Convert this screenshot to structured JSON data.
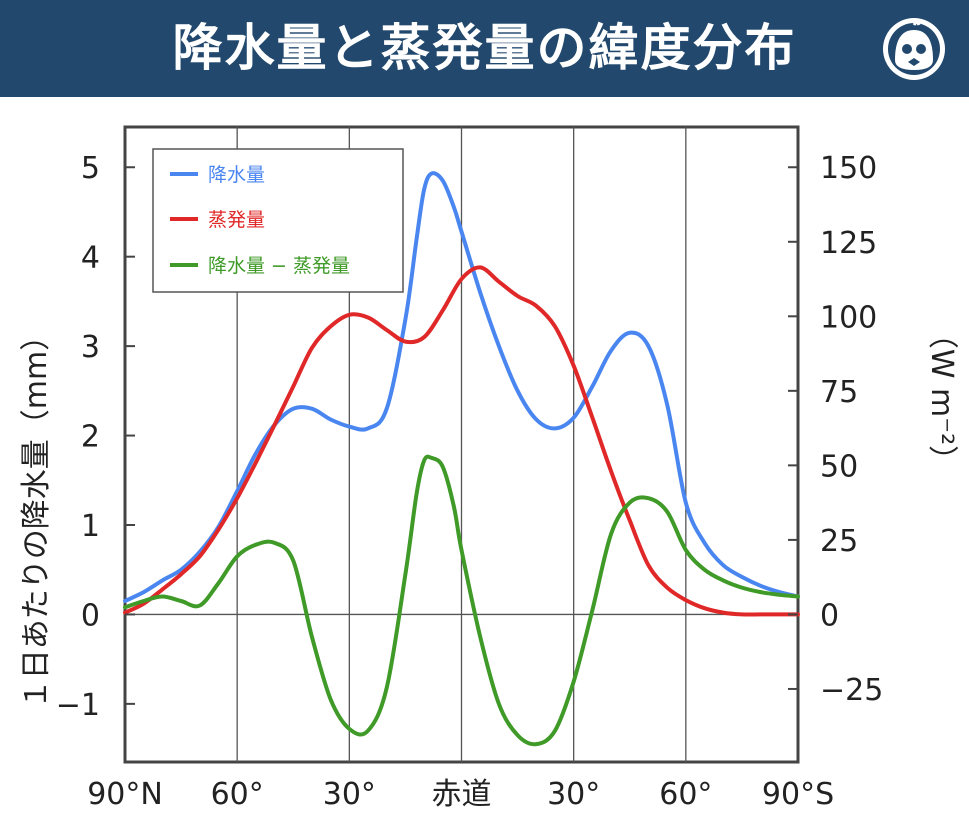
{
  "header": {
    "title": "降水量と蒸発量の緯度分布",
    "logo_icon": "mascot-logo-icon",
    "bg_color": "#22496d"
  },
  "chart_data": {
    "type": "line",
    "ylabel": "１日あたりの降水量（mm）",
    "y2label": "（W m⁻²）",
    "x_ticks": [
      "90°N",
      "60°",
      "30°",
      "赤道",
      "30°",
      "60°",
      "90°S"
    ],
    "x_tick_positions": [
      90,
      60,
      30,
      0,
      -30,
      -60,
      -90
    ],
    "xlim": [
      90,
      -90
    ],
    "y_ticks": [
      "−1",
      "0",
      "1",
      "2",
      "3",
      "4",
      "5"
    ],
    "y_tick_values": [
      -1,
      0,
      1,
      2,
      3,
      4,
      5
    ],
    "ylim": [
      -1.65,
      5.45
    ],
    "y2_ticks": [
      "−25",
      "0",
      "25",
      "50",
      "75",
      "100",
      "125",
      "150"
    ],
    "y2_tick_values": [
      -25,
      0,
      25,
      50,
      75,
      100,
      125,
      150
    ],
    "y2_scale": 30,
    "grid": "vertical",
    "legend_position": "top-left",
    "series": [
      {
        "name": "降水量",
        "color": "#4a86f0",
        "x": [
          90,
          85,
          80,
          75,
          70,
          65,
          60,
          55,
          50,
          45,
          40,
          35,
          30,
          25,
          20,
          15,
          12,
          10,
          8,
          5,
          2,
          0,
          -5,
          -10,
          -15,
          -20,
          -25,
          -30,
          -35,
          -40,
          -45,
          -50,
          -55,
          -60,
          -65,
          -70,
          -75,
          -80,
          -85,
          -90
        ],
        "values": [
          0.15,
          0.25,
          0.38,
          0.5,
          0.7,
          0.98,
          1.38,
          1.8,
          2.12,
          2.3,
          2.3,
          2.18,
          2.1,
          2.08,
          2.3,
          3.3,
          4.2,
          4.75,
          4.93,
          4.85,
          4.55,
          4.28,
          3.6,
          3.0,
          2.5,
          2.18,
          2.08,
          2.2,
          2.55,
          2.95,
          3.15,
          3.0,
          2.35,
          1.25,
          0.8,
          0.55,
          0.42,
          0.32,
          0.25,
          0.2
        ]
      },
      {
        "name": "蒸発量",
        "color": "#e02828",
        "x": [
          90,
          85,
          80,
          75,
          70,
          65,
          60,
          55,
          50,
          45,
          40,
          35,
          30,
          25,
          20,
          15,
          10,
          5,
          0,
          -5,
          -10,
          -15,
          -20,
          -25,
          -30,
          -35,
          -40,
          -45,
          -50,
          -55,
          -60,
          -65,
          -70,
          -75,
          -80,
          -85,
          -90
        ],
        "values": [
          0.02,
          0.12,
          0.28,
          0.45,
          0.65,
          0.95,
          1.3,
          1.7,
          2.12,
          2.55,
          2.98,
          3.22,
          3.35,
          3.32,
          3.18,
          3.05,
          3.1,
          3.4,
          3.75,
          3.88,
          3.72,
          3.56,
          3.45,
          3.22,
          2.78,
          2.2,
          1.6,
          1.05,
          0.55,
          0.3,
          0.16,
          0.07,
          0.02,
          0.0,
          0.0,
          0.0,
          0.0
        ]
      },
      {
        "name": "降水量 − 蒸発量",
        "color": "#3f9a28",
        "x": [
          90,
          85,
          80,
          75,
          70,
          65,
          60,
          55,
          50,
          45,
          40,
          35,
          30,
          25,
          20,
          15,
          12,
          10,
          8,
          5,
          2,
          0,
          -5,
          -10,
          -15,
          -20,
          -25,
          -30,
          -35,
          -40,
          -45,
          -50,
          -55,
          -60,
          -65,
          -70,
          -75,
          -80,
          -85,
          -90
        ],
        "values": [
          0.08,
          0.15,
          0.2,
          0.15,
          0.1,
          0.35,
          0.65,
          0.78,
          0.8,
          0.6,
          -0.25,
          -0.95,
          -1.28,
          -1.3,
          -0.82,
          0.45,
          1.35,
          1.72,
          1.75,
          1.65,
          1.2,
          0.72,
          -0.25,
          -1.0,
          -1.35,
          -1.45,
          -1.3,
          -0.75,
          0.05,
          0.9,
          1.25,
          1.3,
          1.15,
          0.72,
          0.5,
          0.38,
          0.3,
          0.25,
          0.22,
          0.2
        ]
      }
    ]
  }
}
